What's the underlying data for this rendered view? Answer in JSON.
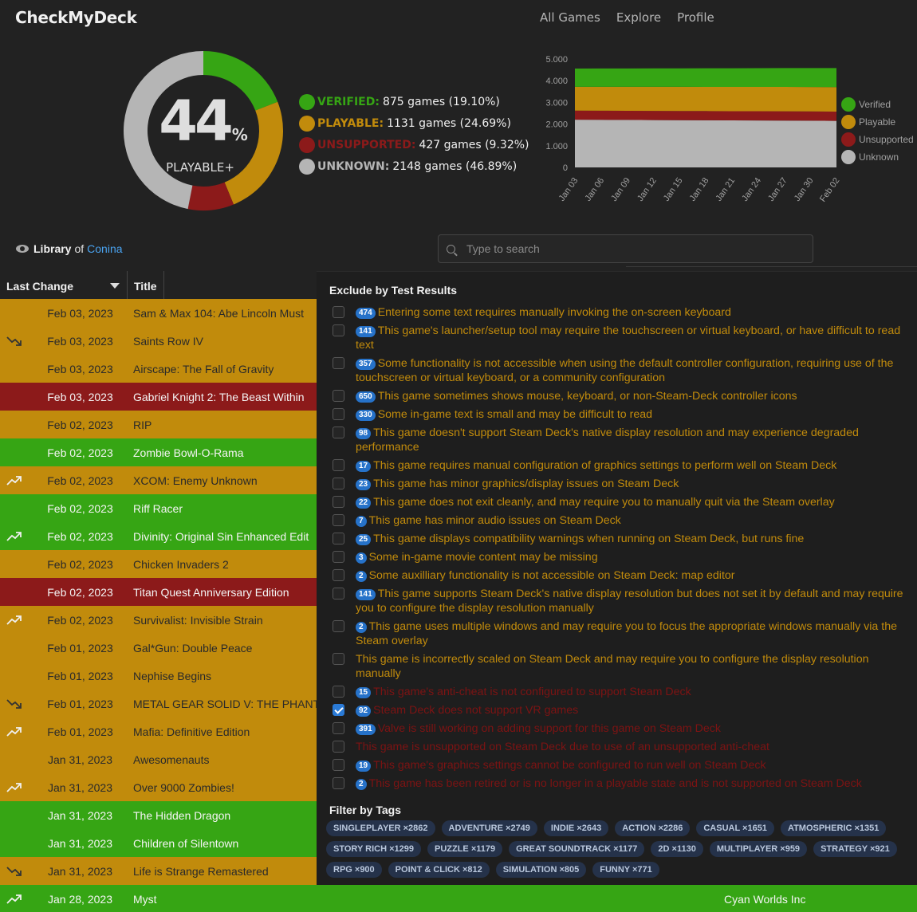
{
  "header": {
    "brand": "CheckMyDeck",
    "nav": [
      "All Games",
      "Explore",
      "Profile"
    ]
  },
  "summary": {
    "big_number": "44",
    "percent_sign": "%",
    "subtitle": "PLAYABLE+",
    "stats": [
      {
        "label": "VERIFIED:",
        "value": "875 games (19.10%)",
        "color": "#36a514"
      },
      {
        "label": "PLAYABLE:",
        "value": "1131 games (24.69%)",
        "color": "#c18b0c"
      },
      {
        "label": "UNSUPPORTED:",
        "value": "427 games (9.32%)",
        "color": "#8c1a1a"
      },
      {
        "label": "UNKNOWN:",
        "value": "2148 games (46.89%)",
        "color": "#b5b5b5"
      }
    ]
  },
  "chart_data": [
    {
      "type": "pie",
      "categories": [
        "Verified",
        "Playable",
        "Unsupported",
        "Unknown"
      ],
      "values": [
        19.1,
        24.69,
        9.32,
        46.89
      ],
      "colors": [
        "#36a514",
        "#c18b0c",
        "#8c1a1a",
        "#b5b5b5"
      ]
    },
    {
      "type": "area",
      "x": [
        "Jan 03",
        "Jan 06",
        "Jan 09",
        "Jan 12",
        "Jan 15",
        "Jan 18",
        "Jan 21",
        "Jan 24",
        "Jan 27",
        "Jan 30",
        "Feb 02"
      ],
      "yticks": [
        "0",
        "1.000",
        "2.000",
        "3.000",
        "4.000",
        "5.000"
      ],
      "ylim": [
        0,
        5000
      ],
      "series": [
        {
          "name": "Unknown",
          "values": [
            2200,
            2195,
            2190,
            2185,
            2180,
            2175,
            2170,
            2165,
            2160,
            2155,
            2148
          ],
          "color": "#b5b5b5"
        },
        {
          "name": "Unsupported",
          "values": [
            420,
            420,
            421,
            422,
            423,
            424,
            424,
            425,
            426,
            426,
            427
          ],
          "color": "#8c1a1a"
        },
        {
          "name": "Playable",
          "values": [
            1100,
            1104,
            1107,
            1110,
            1113,
            1116,
            1119,
            1122,
            1125,
            1128,
            1131
          ],
          "color": "#c18b0c"
        },
        {
          "name": "Verified",
          "values": [
            840,
            843,
            846,
            849,
            853,
            857,
            861,
            865,
            869,
            872,
            875
          ],
          "color": "#36a514"
        }
      ],
      "legend": [
        "Verified",
        "Playable",
        "Unsupported",
        "Unknown"
      ],
      "legend_position": "right"
    }
  ],
  "library": {
    "prefix": "Library",
    "of": "of",
    "user": "Conina"
  },
  "search": {
    "placeholder": "Type to search"
  },
  "table": {
    "headers": [
      "Last Change",
      "Title"
    ],
    "rows": [
      {
        "date": "Feb 03, 2023",
        "title": "Sam & Max 104: Abe Lincoln Must",
        "status": "playable",
        "trend": ""
      },
      {
        "date": "Feb 03, 2023",
        "title": "Saints Row IV",
        "status": "playable",
        "trend": "down"
      },
      {
        "date": "Feb 03, 2023",
        "title": "Airscape: The Fall of Gravity",
        "status": "playable",
        "trend": ""
      },
      {
        "date": "Feb 03, 2023",
        "title": "Gabriel Knight 2: The Beast Within",
        "status": "unsupported",
        "trend": ""
      },
      {
        "date": "Feb 02, 2023",
        "title": "RIP",
        "status": "playable",
        "trend": ""
      },
      {
        "date": "Feb 02, 2023",
        "title": "Zombie Bowl-O-Rama",
        "status": "verified",
        "trend": ""
      },
      {
        "date": "Feb 02, 2023",
        "title": "XCOM: Enemy Unknown",
        "status": "playable",
        "trend": "up"
      },
      {
        "date": "Feb 02, 2023",
        "title": "Riff Racer",
        "status": "verified",
        "trend": ""
      },
      {
        "date": "Feb 02, 2023",
        "title": "Divinity: Original Sin Enhanced Edit",
        "status": "verified",
        "trend": "up"
      },
      {
        "date": "Feb 02, 2023",
        "title": "Chicken Invaders 2",
        "status": "playable",
        "trend": ""
      },
      {
        "date": "Feb 02, 2023",
        "title": "Titan Quest Anniversary Edition",
        "status": "unsupported",
        "trend": ""
      },
      {
        "date": "Feb 02, 2023",
        "title": "Survivalist: Invisible Strain",
        "status": "playable",
        "trend": "up"
      },
      {
        "date": "Feb 01, 2023",
        "title": "Gal*Gun: Double Peace",
        "status": "playable",
        "trend": ""
      },
      {
        "date": "Feb 01, 2023",
        "title": "Nephise Begins",
        "status": "playable",
        "trend": ""
      },
      {
        "date": "Feb 01, 2023",
        "title": "METAL GEAR SOLID V: THE PHANT",
        "status": "playable",
        "trend": "down"
      },
      {
        "date": "Feb 01, 2023",
        "title": "Mafia: Definitive Edition",
        "status": "playable",
        "trend": "up"
      },
      {
        "date": "Jan 31, 2023",
        "title": "Awesomenauts",
        "status": "playable",
        "trend": ""
      },
      {
        "date": "Jan 31, 2023",
        "title": "Over 9000 Zombies!",
        "status": "playable",
        "trend": "up"
      },
      {
        "date": "Jan 31, 2023",
        "title": "The Hidden Dragon",
        "status": "verified",
        "trend": ""
      },
      {
        "date": "Jan 31, 2023",
        "title": "Children of Silentown",
        "status": "verified",
        "trend": ""
      },
      {
        "date": "Jan 31, 2023",
        "title": "Life is Strange Remastered",
        "status": "playable",
        "trend": "down"
      },
      {
        "date": "Jan 28, 2023",
        "title": "Myst",
        "status": "verified",
        "trend": "up",
        "extra": "Cyan Worlds Inc"
      }
    ]
  },
  "panel": {
    "exclude_title": "Exclude by Test Results",
    "exclude_items": [
      {
        "count": "474",
        "text": "Entering some text requires manually invoking the on-screen keyboard",
        "kind": "playable",
        "checked": false
      },
      {
        "count": "141",
        "text": "This game's launcher/setup tool may require the touchscreen or virtual keyboard, or have difficult to read text",
        "kind": "playable",
        "checked": false
      },
      {
        "count": "357",
        "text": "Some functionality is not accessible when using the default controller configuration, requiring use of the touchscreen or virtual keyboard, or a community configuration",
        "kind": "playable",
        "checked": false
      },
      {
        "count": "650",
        "text": "This game sometimes shows mouse, keyboard, or non-Steam-Deck controller icons",
        "kind": "playable",
        "checked": false
      },
      {
        "count": "330",
        "text": "Some in-game text is small and may be difficult to read",
        "kind": "playable",
        "checked": false
      },
      {
        "count": "98",
        "text": "This game doesn't support Steam Deck's native display resolution and may experience degraded performance",
        "kind": "playable",
        "checked": false
      },
      {
        "count": "17",
        "text": "This game requires manual configuration of graphics settings to perform well on Steam Deck",
        "kind": "playable",
        "checked": false
      },
      {
        "count": "23",
        "text": "This game has minor graphics/display issues on Steam Deck",
        "kind": "playable",
        "checked": false
      },
      {
        "count": "22",
        "text": "This game does not exit cleanly, and may require you to manually quit via the Steam overlay",
        "kind": "playable",
        "checked": false
      },
      {
        "count": "7",
        "text": "This game has minor audio issues on Steam Deck",
        "kind": "playable",
        "checked": false
      },
      {
        "count": "25",
        "text": "This game displays compatibility warnings when running on Steam Deck, but runs fine",
        "kind": "playable",
        "checked": false
      },
      {
        "count": "3",
        "text": "Some in-game movie content may be missing",
        "kind": "playable",
        "checked": false
      },
      {
        "count": "2",
        "text": "Some auxilliary functionality is not accessible on Steam Deck: map editor",
        "kind": "playable",
        "checked": false
      },
      {
        "count": "141",
        "text": "This game supports Steam Deck's native display resolution but does not set it by default and may require you to configure the display resolution manually",
        "kind": "playable",
        "checked": false
      },
      {
        "count": "2",
        "text": "This game uses multiple windows and may require you to focus the appropriate windows manually via the Steam overlay",
        "kind": "playable",
        "checked": false
      },
      {
        "count": "",
        "text": "This game is incorrectly scaled on Steam Deck and may require you to configure the display resolution manually",
        "kind": "playable",
        "checked": false
      },
      {
        "count": "15",
        "text": "This game's anti-cheat is not configured to support Steam Deck",
        "kind": "unsupported",
        "checked": false
      },
      {
        "count": "92",
        "text": "Steam Deck does not support VR games",
        "kind": "unsupported",
        "checked": true
      },
      {
        "count": "391",
        "text": "Valve is still working on adding support for this game on Steam Deck",
        "kind": "unsupported",
        "checked": false
      },
      {
        "count": "",
        "text": "This game is unsupported on Steam Deck due to use of an unsupported anti-cheat",
        "kind": "unsupported",
        "checked": false
      },
      {
        "count": "19",
        "text": "This game's graphics settings cannot be configured to run well on Steam Deck",
        "kind": "unsupported",
        "checked": false
      },
      {
        "count": "2",
        "text": "This game has been retired or is no longer in a playable state and is not supported on Steam Deck",
        "kind": "unsupported",
        "checked": false
      }
    ],
    "tags_title": "Filter by Tags",
    "tags": [
      "SINGLEPLAYER ×2862",
      "ADVENTURE ×2749",
      "INDIE ×2643",
      "ACTION ×2286",
      "CASUAL ×1651",
      "ATMOSPHERIC ×1351",
      "STORY RICH ×1299",
      "PUZZLE ×1179",
      "GREAT SOUNDTRACK ×1177",
      "2D ×1130",
      "MULTIPLAYER ×959",
      "STRATEGY ×921",
      "RPG ×900",
      "POINT & CLICK ×812",
      "SIMULATION ×805",
      "FUNNY ×771"
    ]
  },
  "colors": {
    "verified": "#36a514",
    "playable": "#c18b0c",
    "unsupported": "#8c1a1a",
    "unknown": "#b5b5b5",
    "accent": "#4aa3f0"
  }
}
